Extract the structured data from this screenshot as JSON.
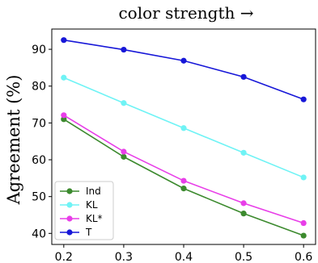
{
  "chart_data": {
    "type": "line",
    "title": "color strength →",
    "xlabel": "",
    "ylabel": "Agreement (%)",
    "x": [
      0.2,
      0.3,
      0.4,
      0.5,
      0.6
    ],
    "x_tick_labels": [
      "0.2",
      "0.3",
      "0.4",
      "0.5",
      "0.6"
    ],
    "xlim": [
      0.18,
      0.62
    ],
    "ylim": [
      37,
      95.5
    ],
    "y_ticks": [
      40,
      50,
      60,
      70,
      80,
      90
    ],
    "y_tick_labels": [
      "40",
      "50",
      "60",
      "70",
      "80",
      "90"
    ],
    "grid": false,
    "legend_position": "lower-left",
    "series": [
      {
        "name": "Ind",
        "color": "#3c8a2e",
        "values": [
          71.0,
          60.8,
          52.2,
          45.4,
          39.4
        ]
      },
      {
        "name": "KL",
        "color": "#6ff3f5",
        "values": [
          82.3,
          75.4,
          68.6,
          61.9,
          55.2
        ]
      },
      {
        "name": "KL*",
        "color": "#e83ee8",
        "values": [
          72.1,
          62.2,
          54.3,
          48.2,
          42.8
        ]
      },
      {
        "name": "T",
        "color": "#1717d8",
        "values": [
          92.5,
          89.9,
          86.9,
          82.5,
          76.4
        ]
      }
    ]
  }
}
